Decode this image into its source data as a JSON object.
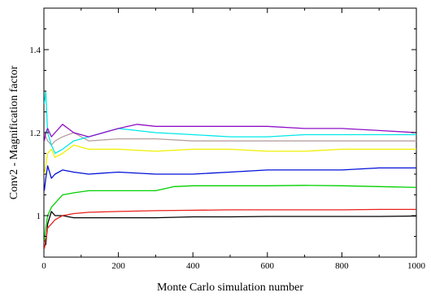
{
  "chart_data": {
    "type": "line",
    "title": "",
    "xlabel": "Monte Carlo simulation number",
    "ylabel": "Conv2 - Magnification factor",
    "xlim": [
      0,
      1000
    ],
    "ylim": [
      0.9,
      1.5
    ],
    "xticks": [
      0,
      200,
      400,
      600,
      800,
      1000
    ],
    "yticks": [
      1,
      1.2,
      1.4
    ],
    "grid": false,
    "legend": "none",
    "series": [
      {
        "color": "#000000",
        "x": [
          1,
          5,
          10,
          20,
          30,
          50,
          80,
          120,
          200,
          300,
          400,
          500,
          600,
          700,
          800,
          900,
          1000
        ],
        "y": [
          0.95,
          0.93,
          0.98,
          1.01,
          1.0,
          1.0,
          0.995,
          0.995,
          0.995,
          0.995,
          0.997,
          0.997,
          0.998,
          0.998,
          0.998,
          0.998,
          0.999
        ]
      },
      {
        "color": "#e8201a",
        "x": [
          1,
          5,
          10,
          20,
          30,
          50,
          80,
          120,
          200,
          300,
          400,
          500,
          600,
          700,
          800,
          900,
          1000
        ],
        "y": [
          0.92,
          0.94,
          0.97,
          0.98,
          0.99,
          1.0,
          1.005,
          1.008,
          1.01,
          1.012,
          1.013,
          1.014,
          1.014,
          1.014,
          1.014,
          1.015,
          1.015
        ]
      },
      {
        "color": "#00d000",
        "x": [
          1,
          5,
          10,
          20,
          30,
          50,
          80,
          120,
          200,
          300,
          350,
          400,
          500,
          600,
          700,
          800,
          900,
          1000
        ],
        "y": [
          0.94,
          0.97,
          1.0,
          1.02,
          1.03,
          1.05,
          1.055,
          1.06,
          1.06,
          1.06,
          1.07,
          1.072,
          1.072,
          1.072,
          1.073,
          1.072,
          1.07,
          1.068
        ]
      },
      {
        "color": "#0010d8",
        "x": [
          1,
          5,
          10,
          20,
          30,
          50,
          80,
          120,
          200,
          300,
          400,
          500,
          600,
          700,
          800,
          900,
          1000
        ],
        "y": [
          1.06,
          1.09,
          1.12,
          1.09,
          1.1,
          1.11,
          1.105,
          1.1,
          1.105,
          1.1,
          1.1,
          1.105,
          1.11,
          1.11,
          1.11,
          1.115,
          1.115
        ]
      },
      {
        "color": "#f0f000",
        "x": [
          1,
          5,
          10,
          20,
          30,
          50,
          80,
          120,
          200,
          300,
          400,
          500,
          600,
          700,
          800,
          900,
          1000
        ],
        "y": [
          1.1,
          1.12,
          1.15,
          1.16,
          1.14,
          1.15,
          1.17,
          1.16,
          1.16,
          1.155,
          1.16,
          1.16,
          1.155,
          1.155,
          1.16,
          1.16,
          1.16
        ]
      },
      {
        "color": "#b8a0a0",
        "x": [
          1,
          5,
          10,
          20,
          30,
          50,
          80,
          120,
          200,
          300,
          400,
          500,
          600,
          700,
          800,
          900,
          1000
        ],
        "y": [
          1.2,
          1.19,
          1.18,
          1.17,
          1.18,
          1.19,
          1.2,
          1.18,
          1.185,
          1.185,
          1.18,
          1.18,
          1.18,
          1.18,
          1.18,
          1.18,
          1.18
        ]
      },
      {
        "color": "#00e8e8",
        "x": [
          1,
          5,
          10,
          20,
          30,
          50,
          80,
          120,
          200,
          300,
          400,
          500,
          600,
          700,
          800,
          900,
          1000
        ],
        "y": [
          1.27,
          1.3,
          1.2,
          1.17,
          1.15,
          1.16,
          1.18,
          1.19,
          1.21,
          1.2,
          1.195,
          1.19,
          1.19,
          1.195,
          1.195,
          1.195,
          1.195
        ]
      },
      {
        "color": "#9010c8",
        "x": [
          1,
          5,
          10,
          20,
          30,
          50,
          80,
          120,
          200,
          250,
          300,
          400,
          500,
          600,
          700,
          800,
          900,
          1000
        ],
        "y": [
          1.18,
          1.2,
          1.21,
          1.19,
          1.2,
          1.22,
          1.2,
          1.19,
          1.21,
          1.22,
          1.215,
          1.215,
          1.215,
          1.215,
          1.21,
          1.21,
          1.205,
          1.2
        ]
      }
    ]
  }
}
